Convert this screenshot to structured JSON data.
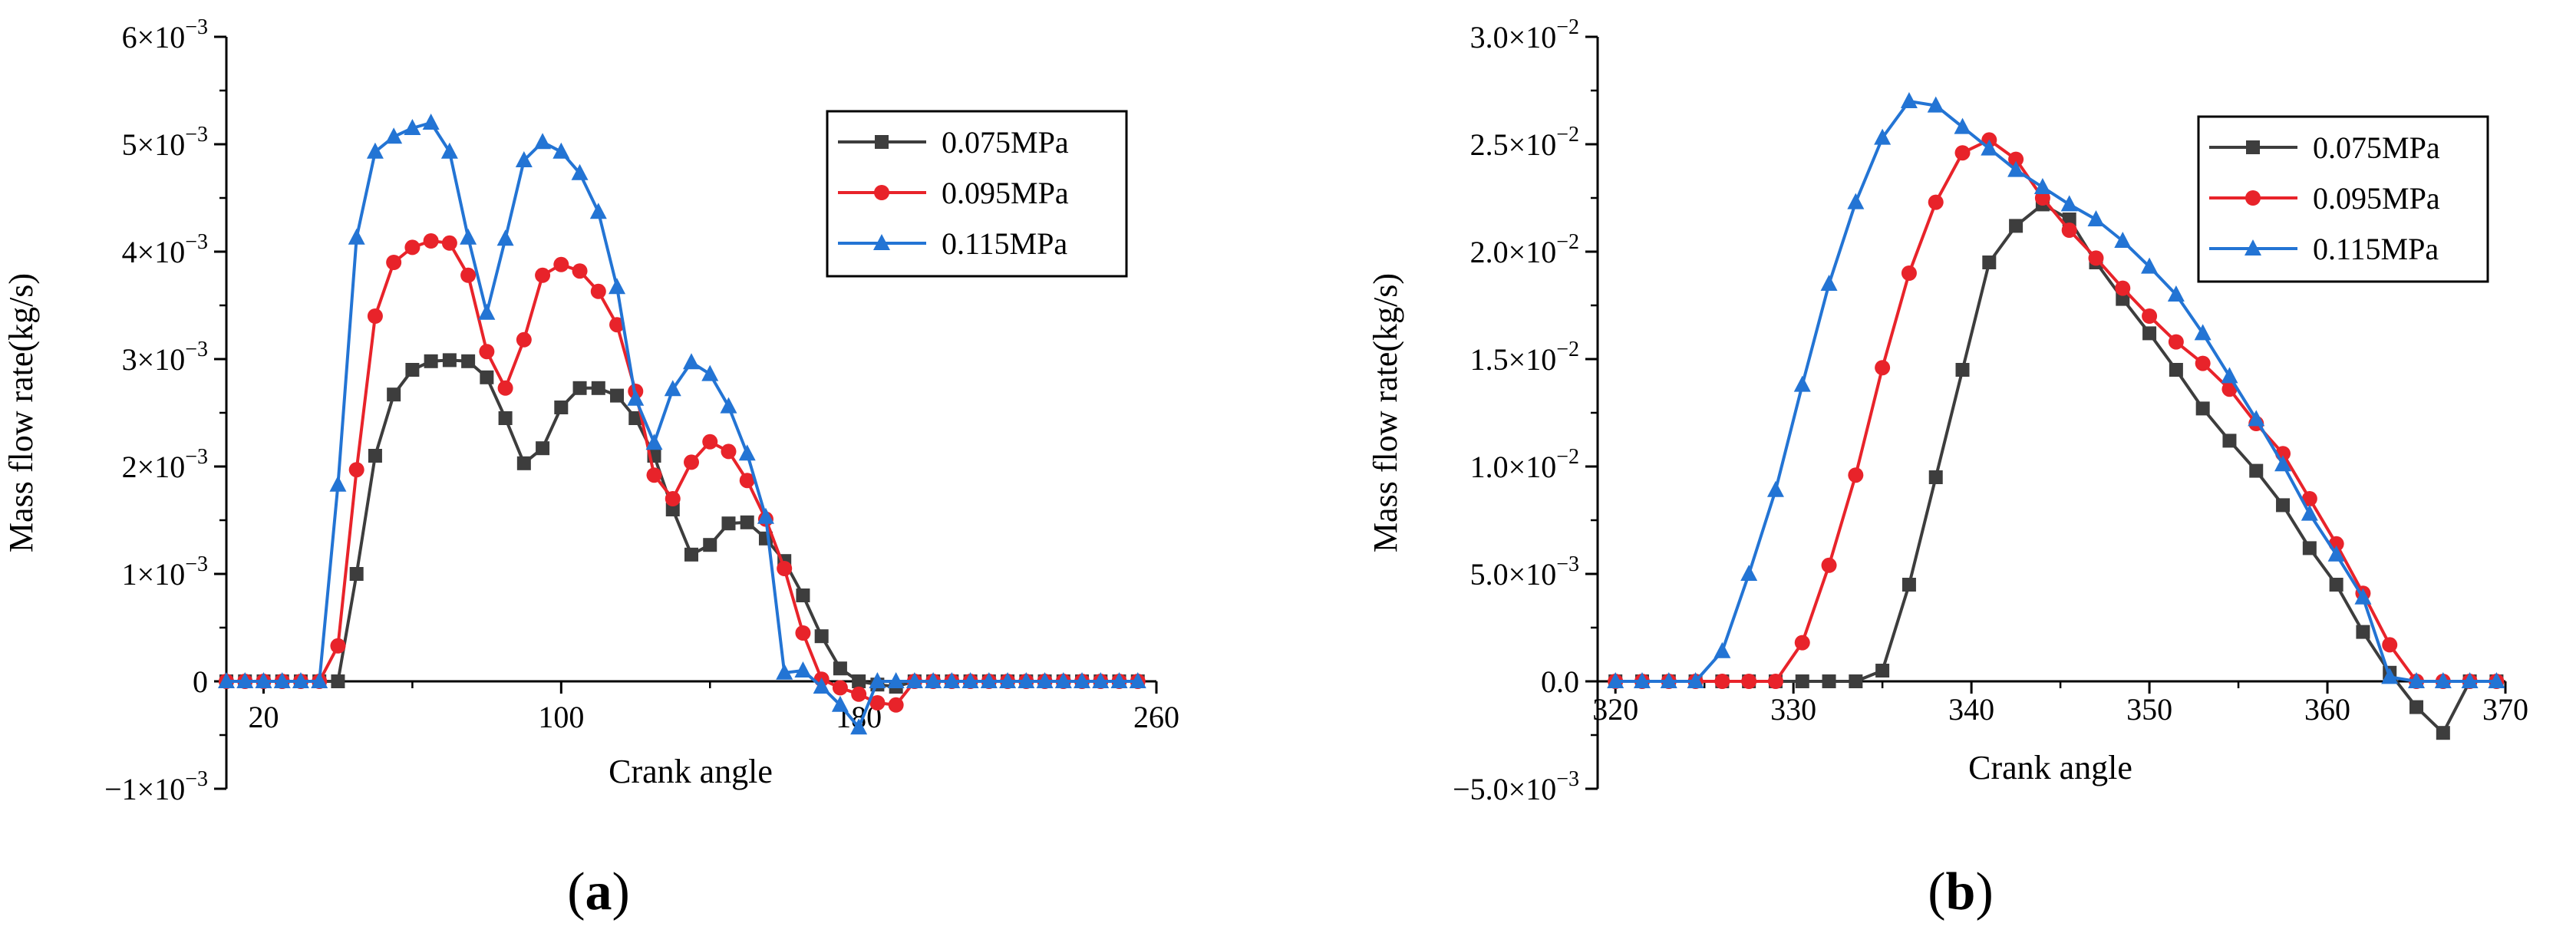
{
  "chart_data": [
    {
      "type": "line",
      "panel_label": "(a)",
      "xlabel": "Crank angle",
      "ylabel": "Mass flow rate(kg/s)",
      "xlim": [
        10,
        260
      ],
      "ylim": [
        -0.001,
        0.006
      ],
      "x_ticks": [
        20,
        100,
        180,
        260
      ],
      "x_tick_labels": [
        "20",
        "100",
        "180",
        "260"
      ],
      "y_ticks": [
        -0.001,
        0,
        0.001,
        0.002,
        0.003,
        0.004,
        0.005,
        0.006
      ],
      "y_tick_labels": [
        {
          "base": "−1×10",
          "exp": "−3"
        },
        {
          "base": "0",
          "exp": ""
        },
        {
          "base": "1×10",
          "exp": "−3"
        },
        {
          "base": "2×10",
          "exp": "−3"
        },
        {
          "base": "3×10",
          "exp": "−3"
        },
        {
          "base": "4×10",
          "exp": "−3"
        },
        {
          "base": "5×10",
          "exp": "−3"
        },
        {
          "base": "6×10",
          "exp": "−3"
        }
      ],
      "legend_position": "top-right",
      "series": [
        {
          "name": "0.075MPa",
          "color": "#3d3d3d",
          "marker": "square",
          "x": [
            10,
            15,
            20,
            25,
            30,
            35,
            40,
            45,
            50,
            55,
            60,
            65,
            70,
            75,
            80,
            85,
            90,
            95,
            100,
            105,
            110,
            115,
            120,
            125,
            130,
            135,
            140,
            145,
            150,
            155,
            160,
            165,
            170,
            175,
            180,
            185,
            190,
            195,
            200,
            205,
            210,
            215,
            220,
            225,
            230,
            235,
            240,
            245,
            250,
            255
          ],
          "y": [
            0,
            0,
            0,
            0,
            0,
            0,
            0,
            0.001,
            0.0021,
            0.00267,
            0.0029,
            0.00298,
            0.00299,
            0.00298,
            0.00283,
            0.00245,
            0.00203,
            0.00217,
            0.00255,
            0.00273,
            0.00273,
            0.00266,
            0.00245,
            0.0021,
            0.0016,
            0.00118,
            0.00127,
            0.00147,
            0.00148,
            0.00133,
            0.00112,
            0.0008,
            0.00042,
            0.00012,
            0,
            -3e-05,
            -5e-05,
            0,
            0,
            0,
            0,
            0,
            0,
            0,
            0,
            0,
            0,
            0,
            0,
            0
          ]
        },
        {
          "name": "0.095MPa",
          "color": "#e8232a",
          "marker": "circle",
          "x": [
            10,
            15,
            20,
            25,
            30,
            35,
            40,
            45,
            50,
            55,
            60,
            65,
            70,
            75,
            80,
            85,
            90,
            95,
            100,
            105,
            110,
            115,
            120,
            125,
            130,
            135,
            140,
            145,
            150,
            155,
            160,
            165,
            170,
            175,
            180,
            185,
            190,
            195,
            200,
            205,
            210,
            215,
            220,
            225,
            230,
            235,
            240,
            245,
            250,
            255
          ],
          "y": [
            0,
            0,
            0,
            0,
            0,
            0,
            0.00033,
            0.00197,
            0.0034,
            0.0039,
            0.00404,
            0.0041,
            0.00408,
            0.00378,
            0.00307,
            0.00273,
            0.00318,
            0.00378,
            0.00388,
            0.00382,
            0.00363,
            0.00332,
            0.0027,
            0.00192,
            0.0017,
            0.00204,
            0.00223,
            0.00214,
            0.00187,
            0.00151,
            0.00105,
            0.00045,
            2e-05,
            -6e-05,
            -0.00012,
            -0.0002,
            -0.00022,
            0,
            0,
            0,
            0,
            0,
            0,
            0,
            0,
            0,
            0,
            0,
            0,
            0
          ]
        },
        {
          "name": "0.115MPa",
          "color": "#2374d4",
          "marker": "triangle",
          "x": [
            10,
            15,
            20,
            25,
            30,
            35,
            40,
            45,
            50,
            55,
            60,
            65,
            70,
            75,
            80,
            85,
            90,
            95,
            100,
            105,
            110,
            115,
            120,
            125,
            130,
            135,
            140,
            145,
            150,
            155,
            160,
            165,
            170,
            175,
            180,
            185,
            190,
            195,
            200,
            205,
            210,
            215,
            220,
            225,
            230,
            235,
            240,
            245,
            250,
            255
          ],
          "y": [
            0,
            0,
            0,
            0,
            0,
            0,
            0.00183,
            0.00413,
            0.00493,
            0.00507,
            0.00515,
            0.0052,
            0.00493,
            0.00413,
            0.00343,
            0.00412,
            0.00485,
            0.00502,
            0.00493,
            0.00473,
            0.00437,
            0.00367,
            0.00263,
            0.00222,
            0.00272,
            0.00297,
            0.00286,
            0.00256,
            0.00212,
            0.00153,
            8e-05,
            0.0001,
            -5e-05,
            -0.00022,
            -0.00043,
            0,
            0,
            0,
            0,
            0,
            0,
            0,
            0,
            0,
            0,
            0,
            0,
            0,
            0,
            0
          ]
        }
      ]
    },
    {
      "type": "line",
      "panel_label": "(b)",
      "xlabel": "Crank angle",
      "ylabel": "Mass flow rate(kg/s)",
      "xlim": [
        319,
        370
      ],
      "ylim": [
        -0.005,
        0.03
      ],
      "x_ticks": [
        320,
        330,
        340,
        350,
        360,
        370
      ],
      "x_tick_labels": [
        "320",
        "330",
        "340",
        "350",
        "360",
        "370"
      ],
      "y_ticks": [
        -0.005,
        0,
        0.005,
        0.01,
        0.015,
        0.02,
        0.025,
        0.03
      ],
      "y_tick_labels": [
        {
          "base": "−5.0×10",
          "exp": "−3"
        },
        {
          "base": "0.0",
          "exp": ""
        },
        {
          "base": "5.0×10",
          "exp": "−3"
        },
        {
          "base": "1.0×10",
          "exp": "−2"
        },
        {
          "base": "1.5×10",
          "exp": "−2"
        },
        {
          "base": "2.0×10",
          "exp": "−2"
        },
        {
          "base": "2.5×10",
          "exp": "−2"
        },
        {
          "base": "3.0×10",
          "exp": "−2"
        }
      ],
      "legend_position": "top-right",
      "series": [
        {
          "name": "0.075MPa",
          "color": "#3d3d3d",
          "marker": "square",
          "x": [
            320,
            321.5,
            323,
            324.5,
            326,
            327.5,
            329,
            330.5,
            332,
            333.5,
            335,
            336.5,
            338,
            339.5,
            341,
            342.5,
            344,
            345.5,
            347,
            348.5,
            350,
            351.5,
            353,
            354.5,
            356,
            357.5,
            359,
            360.5,
            362,
            363.5,
            365,
            366.5,
            368,
            369.5
          ],
          "y": [
            0,
            0,
            0,
            0,
            0,
            0,
            0,
            0,
            0,
            0,
            0.0005,
            0.0045,
            0.0095,
            0.0145,
            0.0195,
            0.0212,
            0.0222,
            0.0215,
            0.0195,
            0.0178,
            0.0162,
            0.0145,
            0.0127,
            0.0112,
            0.0098,
            0.0082,
            0.0062,
            0.0045,
            0.0023,
            0.0004,
            -0.0012,
            -0.0024,
            0,
            0
          ],
          "marker_x": [
            320,
            321.5,
            323,
            324.5,
            326,
            327.5,
            329,
            330.5,
            332,
            333.5,
            335,
            336.5,
            338,
            339.5,
            341,
            342.5,
            344,
            345.5,
            347,
            348.5,
            350,
            351.5,
            353,
            354.5,
            356,
            357.5,
            359,
            360.5,
            362,
            363.5,
            365,
            366.5,
            368,
            369.5
          ]
        },
        {
          "name": "0.095MPa",
          "color": "#e8232a",
          "marker": "circle",
          "x": [
            320,
            321.5,
            323,
            324.5,
            326,
            327.5,
            329,
            330.5,
            332,
            333.5,
            335,
            336.5,
            338,
            339.5,
            341,
            342.5,
            344,
            345.5,
            347,
            348.5,
            350,
            351.5,
            353,
            354.5,
            356,
            357.5,
            359,
            360.5,
            362,
            363.5,
            365,
            366.5,
            368,
            369.5
          ],
          "y": [
            0,
            0,
            0,
            0,
            0,
            0,
            0,
            0.0018,
            0.0054,
            0.0096,
            0.0146,
            0.019,
            0.0223,
            0.0246,
            0.0252,
            0.0243,
            0.0225,
            0.021,
            0.0197,
            0.0183,
            0.017,
            0.0158,
            0.0148,
            0.0136,
            0.012,
            0.0106,
            0.0085,
            0.0064,
            0.0041,
            0.0017,
            0,
            0,
            0,
            0
          ]
        },
        {
          "name": "0.115MPa",
          "color": "#2374d4",
          "marker": "triangle",
          "x": [
            320,
            321.5,
            323,
            324.5,
            326,
            327.5,
            329,
            330.5,
            332,
            333.5,
            335,
            336.5,
            338,
            339.5,
            341,
            342.5,
            344,
            345.5,
            347,
            348.5,
            350,
            351.5,
            353,
            354.5,
            356,
            357.5,
            359,
            360.5,
            362,
            363.5,
            365,
            366.5,
            368,
            369.5
          ],
          "y": [
            0,
            0,
            0,
            0,
            0.0014,
            0.005,
            0.0089,
            0.0138,
            0.0185,
            0.0223,
            0.0253,
            0.027,
            0.0268,
            0.0258,
            0.0248,
            0.0238,
            0.023,
            0.0222,
            0.0215,
            0.0205,
            0.0193,
            0.018,
            0.0162,
            0.0142,
            0.0122,
            0.0101,
            0.0078,
            0.0059,
            0.0039,
            0.0002,
            0,
            0,
            0,
            0
          ]
        }
      ]
    }
  ]
}
